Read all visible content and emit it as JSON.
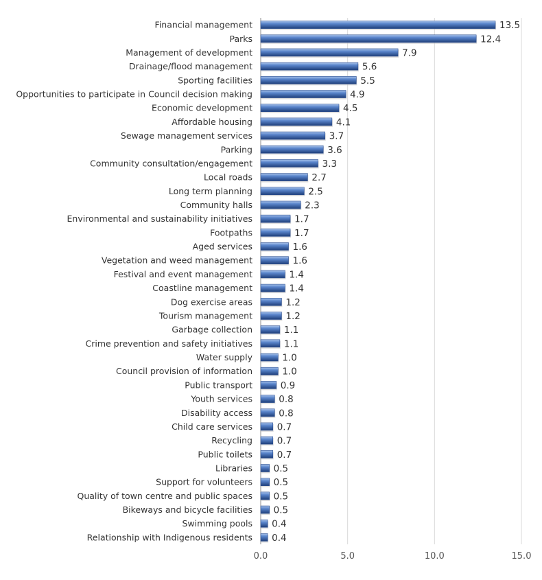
{
  "chart_data": {
    "type": "bar",
    "orientation": "horizontal",
    "categories": [
      "Financial management",
      "Parks",
      "Management of development",
      "Drainage/flood management",
      "Sporting facilities",
      "Opportunities to participate in Council decision making",
      "Economic development",
      "Affordable housing",
      "Sewage management services",
      "Parking",
      "Community consultation/engagement",
      "Local roads",
      "Long term planning",
      "Community halls",
      "Environmental and sustainability initiatives",
      "Footpaths",
      "Aged services",
      "Vegetation and weed management",
      "Festival and event management",
      "Coastline management",
      "Dog exercise areas",
      "Tourism management",
      "Garbage collection",
      "Crime prevention and safety initiatives",
      "Water supply",
      "Council provision of information",
      "Public transport",
      "Youth services",
      "Disability access",
      "Child care services",
      "Recycling",
      "Public toilets",
      "Libraries",
      "Support for volunteers",
      "Quality of town centre and public spaces",
      "Bikeways and bicycle facilities",
      "Swimming pools",
      "Relationship with Indigenous residents"
    ],
    "values": [
      13.5,
      12.4,
      7.9,
      5.6,
      5.5,
      4.9,
      4.5,
      4.1,
      3.7,
      3.6,
      3.3,
      2.7,
      2.5,
      2.3,
      1.7,
      1.7,
      1.6,
      1.6,
      1.4,
      1.4,
      1.2,
      1.2,
      1.1,
      1.1,
      1.0,
      1.0,
      0.9,
      0.8,
      0.8,
      0.7,
      0.7,
      0.7,
      0.5,
      0.5,
      0.5,
      0.5,
      0.4,
      0.4
    ],
    "value_labels": [
      "13.5",
      "12.4",
      "7.9",
      "5.6",
      "5.5",
      "4.9",
      "4.5",
      "4.1",
      "3.7",
      "3.6",
      "3.3",
      "2.7",
      "2.5",
      "2.3",
      "1.7",
      "1.7",
      "1.6",
      "1.6",
      "1.4",
      "1.4",
      "1.2",
      "1.2",
      "1.1",
      "1.1",
      "1.0",
      "1.0",
      "0.9",
      "0.8",
      "0.8",
      "0.7",
      "0.7",
      "0.7",
      "0.5",
      "0.5",
      "0.5",
      "0.5",
      "0.4",
      "0.4"
    ],
    "xlim": [
      0,
      15
    ],
    "x_ticks": [
      0,
      5,
      10,
      15
    ],
    "x_tick_labels": [
      "0.0",
      "5.0",
      "10.0",
      "15.0"
    ],
    "title": "",
    "xlabel": "",
    "ylabel": "",
    "grid": "vertical",
    "legend": "none",
    "colors": {
      "bar_light": "#7a9fd4",
      "bar": "#4472c4",
      "bar_dark": "#2a4d8f"
    }
  }
}
